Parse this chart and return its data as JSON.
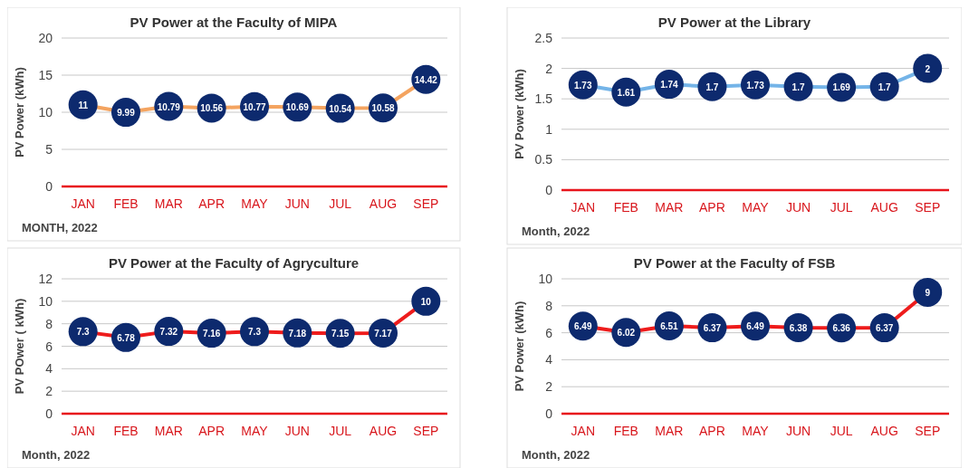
{
  "chart_data": [
    {
      "type": "line",
      "title": "PV Power at the Faculty of MIPA",
      "xlabel": "MONTH,  2022",
      "ylabel": "PV Power (kWh)",
      "categories": [
        "JAN",
        "FEB",
        "MAR",
        "APR",
        "MAY",
        "JUN",
        "JUL",
        "AUG",
        "SEP"
      ],
      "series": [
        {
          "color": "#f4a460",
          "values": [
            11,
            9.99,
            10.79,
            10.56,
            10.77,
            10.69,
            10.54,
            10.58,
            14.42
          ]
        }
      ],
      "ylim": [
        0,
        20
      ],
      "yticks": [
        0,
        5,
        10,
        15,
        20
      ],
      "grid": "y",
      "marker": "circle",
      "data_labels": true
    },
    {
      "type": "line",
      "title": "PV Power at the Library",
      "xlabel": "Month,  2022",
      "ylabel": "PV Power (kWh)",
      "categories": [
        "JAN",
        "FEB",
        "MAR",
        "APR",
        "MAY",
        "JUN",
        "JUL",
        "AUG",
        "SEP"
      ],
      "series": [
        {
          "color": "#74b4e8",
          "values": [
            1.73,
            1.61,
            1.74,
            1.7,
            1.73,
            1.7,
            1.69,
            1.7,
            2
          ]
        }
      ],
      "ylim": [
        0,
        2.5
      ],
      "yticks": [
        0,
        0.5,
        1,
        1.5,
        2,
        2.5
      ],
      "grid": "y",
      "marker": "circle",
      "data_labels": true
    },
    {
      "type": "line",
      "title": "PV Power at the Faculty of Agryculture",
      "xlabel": "Month,  2022",
      "ylabel": "PV POwer ( kWh)",
      "categories": [
        "JAN",
        "FEB",
        "MAR",
        "APR",
        "MAY",
        "JUN",
        "JUL",
        "AUG",
        "SEP"
      ],
      "series": [
        {
          "color": "#ee1c1c",
          "values": [
            7.3,
            6.78,
            7.32,
            7.16,
            7.3,
            7.18,
            7.15,
            7.17,
            10
          ]
        }
      ],
      "ylim": [
        0,
        12
      ],
      "yticks": [
        0,
        2,
        4,
        6,
        8,
        10,
        12
      ],
      "grid": "y",
      "marker": "circle",
      "data_labels": true
    },
    {
      "type": "line",
      "title": "PV Power at the Faculty of FSB",
      "xlabel": "Month,  2022",
      "ylabel": "PV Power (kWh)",
      "categories": [
        "JAN",
        "FEB",
        "MAR",
        "APR",
        "MAY",
        "JUN",
        "JUL",
        "AUG",
        "SEP"
      ],
      "series": [
        {
          "color": "#ee1c1c",
          "values": [
            6.49,
            6.02,
            6.51,
            6.37,
            6.49,
            6.38,
            6.36,
            6.37,
            9
          ]
        }
      ],
      "ylim": [
        0,
        10
      ],
      "yticks": [
        0,
        2,
        4,
        6,
        8,
        10
      ],
      "grid": "y",
      "marker": "circle",
      "data_labels": true
    }
  ]
}
